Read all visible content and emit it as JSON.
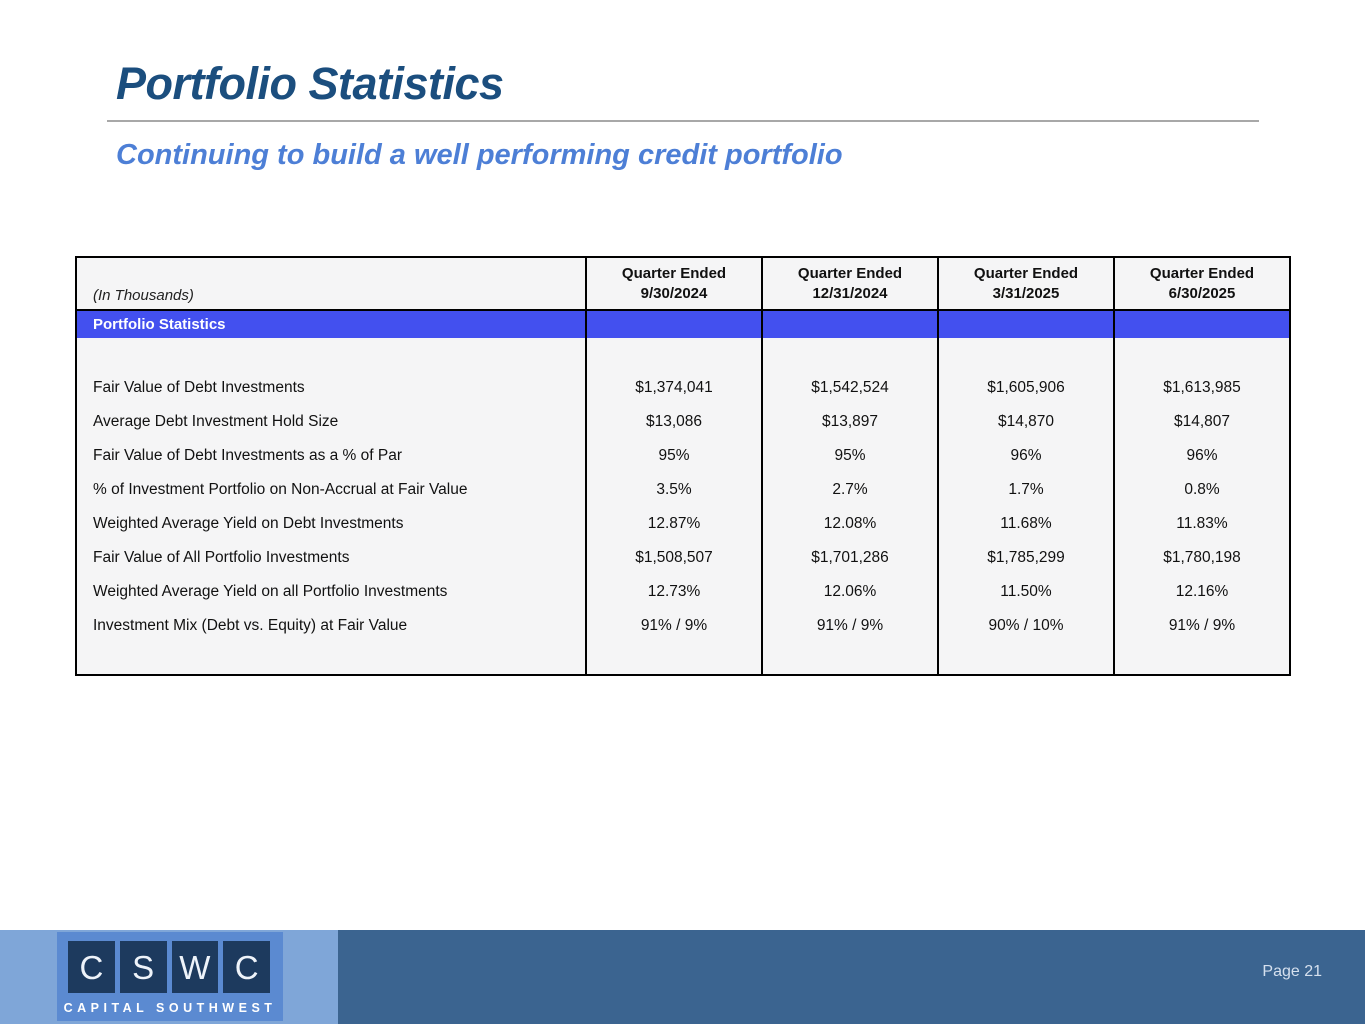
{
  "slide": {
    "title": "Portfolio Statistics",
    "subtitle": "Continuing to build a well performing credit portfolio"
  },
  "table": {
    "unit_note": "(In Thousands)",
    "section_header": "Portfolio Statistics",
    "columns": [
      {
        "line1": "Quarter Ended",
        "line2": "9/30/2024"
      },
      {
        "line1": "Quarter Ended",
        "line2": "12/31/2024"
      },
      {
        "line1": "Quarter Ended",
        "line2": "3/31/2025"
      },
      {
        "line1": "Quarter Ended",
        "line2": "6/30/2025"
      }
    ],
    "rows": [
      {
        "label": "Fair Value of Debt Investments",
        "values": [
          "$1,374,041",
          "$1,542,524",
          "$1,605,906",
          "$1,613,985"
        ]
      },
      {
        "label": "Average Debt Investment Hold Size",
        "values": [
          "$13,086",
          "$13,897",
          "$14,870",
          "$14,807"
        ]
      },
      {
        "label": "Fair Value of Debt Investments as a % of Par",
        "values": [
          "95%",
          "95%",
          "96%",
          "96%"
        ]
      },
      {
        "label": "% of Investment Portfolio on Non-Accrual at Fair Value",
        "values": [
          "3.5%",
          "2.7%",
          "1.7%",
          "0.8%"
        ]
      },
      {
        "label": "Weighted Average Yield on Debt Investments",
        "values": [
          "12.87%",
          "12.08%",
          "11.68%",
          "11.83%"
        ]
      },
      {
        "label": "Fair Value of All Portfolio Investments",
        "values": [
          "$1,508,507",
          "$1,701,286",
          "$1,785,299",
          "$1,780,198"
        ]
      },
      {
        "label": "Weighted Average Yield on all Portfolio Investments",
        "values": [
          "12.73%",
          "12.06%",
          "11.50%",
          "12.16%"
        ]
      },
      {
        "label": "Investment Mix (Debt vs. Equity) at Fair Value",
        "values": [
          "91% / 9%",
          "91% / 9%",
          "90% / 10%",
          "91% / 9%"
        ]
      }
    ]
  },
  "footer": {
    "logo_letters": [
      "C",
      "S",
      "W",
      "C"
    ],
    "logo_caption": "CAPITAL SOUTHWEST",
    "page_label": "Page 21"
  },
  "colors": {
    "title_navy": "#1b4e7e",
    "subtitle_blue": "#4d7fd6",
    "table_band_blue": "#4350ef",
    "footer_light_blue": "#7fa6d8",
    "footer_dark_blue": "#3b6490",
    "logo_block_blue": "#5b8ad1",
    "logo_square_navy": "#1d3a5e"
  }
}
